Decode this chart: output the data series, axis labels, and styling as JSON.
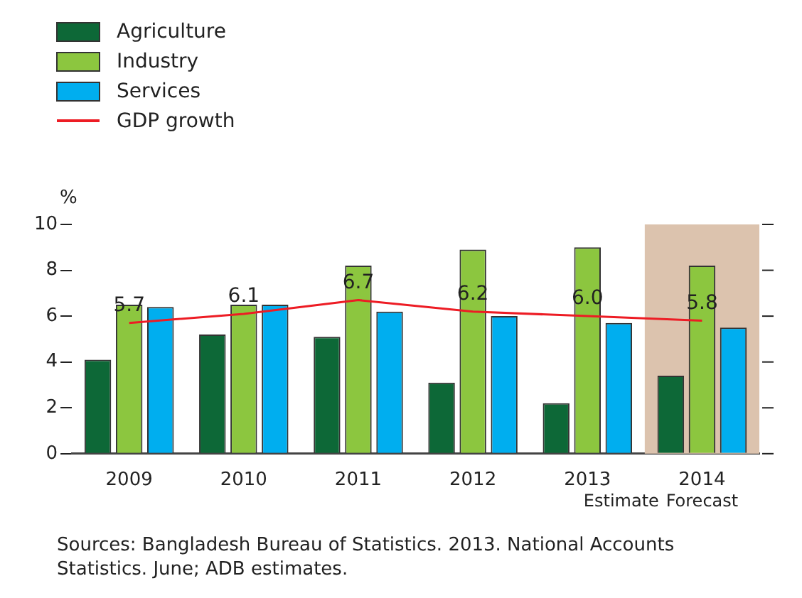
{
  "chart_data": {
    "type": "bar",
    "ylabel": "%",
    "categories": [
      "2009",
      "2010",
      "2011",
      "2012",
      "2013",
      "2014"
    ],
    "series": [
      {
        "name": "Agriculture",
        "color": "#0d6837",
        "values": [
          4.1,
          5.2,
          5.1,
          3.1,
          2.2,
          3.4
        ]
      },
      {
        "name": "Industry",
        "color": "#8cc63f",
        "values": [
          6.5,
          6.5,
          8.2,
          8.9,
          9.0,
          8.2
        ]
      },
      {
        "name": "Services",
        "color": "#00aeef",
        "values": [
          6.4,
          6.5,
          6.2,
          6.0,
          5.7,
          5.5
        ]
      },
      {
        "name": "GDP growth",
        "type": "line",
        "color": "#ed1c24",
        "values": [
          5.7,
          6.1,
          6.7,
          6.2,
          6.0,
          5.8
        ],
        "value_labels": [
          "5.7",
          "6.1",
          "6.7",
          "6.2",
          "6.0",
          "5.8"
        ]
      }
    ],
    "ylim": [
      0,
      10
    ],
    "yticks": [
      0,
      2,
      4,
      6,
      8,
      10
    ],
    "bands": [
      {
        "axis": "x",
        "from": "2014",
        "to": "2014",
        "label": "Forecast",
        "color": "#dcc3ae"
      }
    ],
    "annotations": [
      "Estimate",
      "Sources: Bangladesh Bureau of Statistics. 2013. National Accounts Statistics. June; ADB estimates."
    ],
    "grid": false,
    "legend": "top left"
  }
}
